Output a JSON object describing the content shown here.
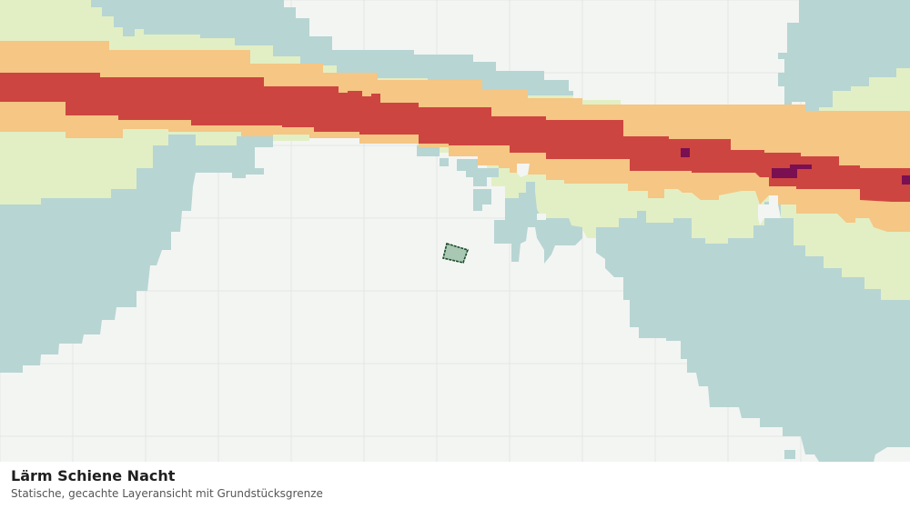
{
  "map": {
    "layer": "noise-rail-night",
    "colors": {
      "background": "#f3f5f3",
      "grid": "#e3e6e3",
      "band_teal": "#b7d5d3",
      "band_lightgreen": "#e2efc4",
      "band_orange": "#f5c684",
      "band_red": "#cd4540",
      "band_purple": "#7a0f52",
      "parcel_fill": "#a9c8b3",
      "parcel_stroke": "#1c4a2b"
    }
  },
  "caption": {
    "title": "Lärm Schiene Nacht",
    "subtitle": "Statische, gecachte Layeransicht mit Grundstücksgrenze"
  }
}
